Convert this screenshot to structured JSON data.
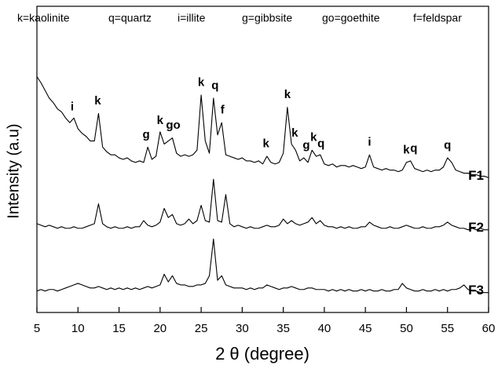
{
  "chart_data": {
    "type": "line",
    "key": [
      "k=kaolinite",
      "q=quartz",
      "i=illite",
      "g=gibbsite",
      "go=goethite",
      "f=feldspar"
    ],
    "xlabel": "2 θ (degree)",
    "ylabel": "Intensity (a.u)",
    "xlim": [
      5,
      60
    ],
    "xticks": [
      5,
      10,
      15,
      20,
      25,
      30,
      35,
      40,
      45,
      50,
      55,
      60
    ],
    "ylim": [
      0,
      100
    ],
    "x": [
      5,
      5.5,
      6,
      6.5,
      7,
      7.5,
      8,
      8.5,
      9,
      9.5,
      10,
      10.5,
      11,
      11.5,
      12,
      12.5,
      13,
      13.5,
      14,
      14.5,
      15,
      15.5,
      16,
      16.5,
      17,
      17.5,
      18,
      18.5,
      19,
      19.5,
      20,
      20.5,
      21,
      21.5,
      22,
      22.5,
      23,
      23.5,
      24,
      24.5,
      25,
      25.5,
      26,
      26.5,
      27,
      27.5,
      28,
      28.5,
      29,
      29.5,
      30,
      30.5,
      31,
      31.5,
      32,
      32.5,
      33,
      33.5,
      34,
      34.5,
      35,
      35.5,
      36,
      36.5,
      37,
      37.5,
      38,
      38.5,
      39,
      39.5,
      40,
      40.5,
      41,
      41.5,
      42,
      42.5,
      43,
      43.5,
      44,
      44.5,
      45,
      45.5,
      46,
      46.5,
      47,
      47.5,
      48,
      48.5,
      49,
      49.5,
      50,
      50.5,
      51,
      51.5,
      52,
      52.5,
      53,
      53.5,
      54,
      54.5,
      55,
      55.5,
      56,
      56.5,
      57,
      57.5,
      58,
      58.5,
      59,
      59.5,
      60
    ],
    "series": [
      {
        "name": "F1",
        "color": "#000000",
        "values": [
          77,
          75,
          72.5,
          70,
          68.5,
          66.5,
          65.5,
          63.5,
          62,
          63.5,
          60,
          58.5,
          57.5,
          56,
          56,
          65,
          54,
          52.5,
          51.5,
          51.5,
          50.5,
          50,
          50.5,
          49.5,
          49,
          49.5,
          49,
          54,
          50,
          51,
          59,
          55,
          56,
          57,
          52,
          51,
          51.5,
          51,
          51.5,
          53,
          71,
          56,
          52,
          70,
          58,
          62,
          51.5,
          51,
          50.5,
          50,
          50.5,
          49.5,
          49.5,
          49,
          49.5,
          48.5,
          51,
          49,
          48.5,
          49,
          52,
          67,
          55,
          53,
          49.5,
          50.5,
          49,
          53,
          51,
          51.5,
          48.5,
          48,
          48.5,
          47.5,
          48,
          48,
          47.5,
          48,
          47.5,
          47,
          47.5,
          51.5,
          47.5,
          47,
          46.5,
          47,
          46.5,
          46.5,
          46,
          46.5,
          49,
          49.5,
          47,
          46.5,
          46,
          46.5,
          46,
          46.5,
          46.5,
          47.5,
          50.5,
          49,
          46.5,
          46,
          45.5,
          45.5,
          45,
          45,
          44.5,
          44.5,
          44
        ]
      },
      {
        "name": "F2",
        "color": "#000000",
        "values": [
          29,
          28.5,
          28,
          28.5,
          28,
          27.5,
          28,
          27.5,
          27.5,
          28,
          27.5,
          27.5,
          28,
          28.5,
          29,
          35.5,
          29,
          28,
          27.5,
          28,
          27.5,
          27.5,
          28,
          27.5,
          28,
          28,
          30,
          28.5,
          28,
          28.5,
          29.5,
          34,
          31,
          32,
          29,
          28.5,
          29,
          30.5,
          29,
          30,
          35,
          30,
          29.5,
          43.5,
          30,
          29.5,
          38.5,
          29,
          28,
          28.5,
          28,
          27.5,
          28,
          27.5,
          27.5,
          28,
          28.5,
          28,
          28,
          28.5,
          30.5,
          29,
          30,
          29,
          28.5,
          29,
          29.5,
          31,
          29,
          30,
          28.5,
          28,
          28,
          27.5,
          28,
          27.5,
          28,
          27.5,
          27.5,
          28,
          28,
          29.5,
          28.5,
          28,
          27.5,
          27.5,
          28,
          27.5,
          27.5,
          28,
          28.5,
          28,
          27.5,
          27.5,
          28,
          27.5,
          27.5,
          28,
          28,
          28.5,
          29.5,
          28.5,
          28,
          27.5,
          27.5,
          27,
          27.5,
          27,
          27.5,
          27,
          27
        ]
      },
      {
        "name": "F3",
        "color": "#000000",
        "values": [
          7,
          7.5,
          7,
          7.5,
          7.5,
          7,
          7.5,
          8,
          8.5,
          9,
          9.5,
          9,
          8.5,
          8,
          8,
          8.5,
          8,
          7.5,
          8,
          7.5,
          8,
          7.5,
          8,
          7.5,
          8,
          7.5,
          8,
          8.5,
          8,
          8.5,
          9,
          12.5,
          10,
          12,
          9.5,
          9,
          9,
          8.5,
          8.5,
          9,
          9,
          9.5,
          12,
          24,
          10.5,
          12,
          9,
          8.5,
          8,
          8,
          8,
          7.5,
          8,
          7.5,
          8,
          8,
          9,
          8.5,
          8,
          7.5,
          8,
          8,
          8.5,
          8,
          7.5,
          7.5,
          8,
          8,
          7.5,
          7.5,
          7.5,
          7,
          7.5,
          7,
          7.5,
          7,
          7.5,
          7,
          7,
          7.5,
          7,
          7.5,
          7,
          7,
          7.5,
          7,
          7,
          7.5,
          7.5,
          9.5,
          8,
          7.5,
          7,
          7,
          7.5,
          7,
          7,
          7.5,
          7,
          7.5,
          7,
          7.5,
          7.5,
          8,
          9,
          7.5,
          7,
          7,
          6.5,
          6.5,
          6.5
        ]
      }
    ],
    "annotations": [
      {
        "text": "i",
        "x": 9.3,
        "y": 67
      },
      {
        "text": "k",
        "x": 12.4,
        "y": 69
      },
      {
        "text": "g",
        "x": 18.3,
        "y": 58
      },
      {
        "text": "k",
        "x": 20.0,
        "y": 62.5
      },
      {
        "text": "go",
        "x": 21.6,
        "y": 61
      },
      {
        "text": "k",
        "x": 25.0,
        "y": 75
      },
      {
        "text": "q",
        "x": 26.7,
        "y": 74
      },
      {
        "text": "f",
        "x": 27.6,
        "y": 66
      },
      {
        "text": "k",
        "x": 32.9,
        "y": 55
      },
      {
        "text": "k",
        "x": 35.5,
        "y": 71
      },
      {
        "text": "k",
        "x": 36.4,
        "y": 58.5
      },
      {
        "text": "g",
        "x": 37.8,
        "y": 54.5
      },
      {
        "text": "k",
        "x": 38.7,
        "y": 57
      },
      {
        "text": "q",
        "x": 39.6,
        "y": 55
      },
      {
        "text": "i",
        "x": 45.5,
        "y": 55.5
      },
      {
        "text": "k",
        "x": 50.0,
        "y": 53
      },
      {
        "text": "q",
        "x": 50.9,
        "y": 53.5
      },
      {
        "text": "q",
        "x": 55.0,
        "y": 54.5
      }
    ]
  }
}
